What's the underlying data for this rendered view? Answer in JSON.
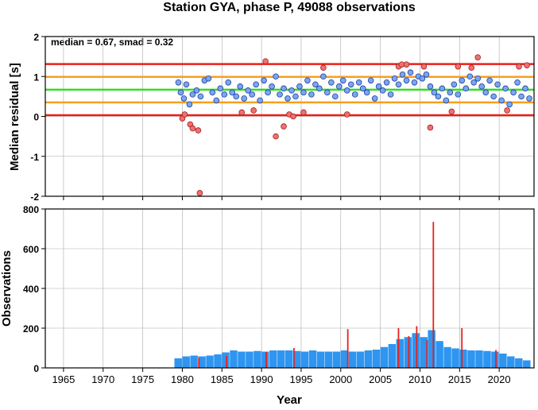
{
  "chart_data": [
    {
      "type": "scatter",
      "title": "Station GYA, phase P, 49088 observations",
      "ylabel": "Median residual [s]",
      "annotation": "median = 0.67, smad = 0.32",
      "xlim": [
        1962.7,
        2024.4
      ],
      "xticks": [
        1965,
        1970,
        1975,
        1980,
        1985,
        1990,
        1995,
        2000,
        2005,
        2010,
        2015,
        2020
      ],
      "ylim": [
        -2,
        2
      ],
      "yticks": [
        -2,
        -1,
        0,
        1,
        2
      ],
      "grid": true,
      "hlines": [
        {
          "value": 1.31,
          "color": "#e8201a"
        },
        {
          "value": 0.99,
          "color": "#f5a020"
        },
        {
          "value": 0.67,
          "color": "#33dd22"
        },
        {
          "value": 0.35,
          "color": "#f5a020"
        },
        {
          "value": 0.03,
          "color": "#e8201a"
        }
      ],
      "series": [
        {
          "color": "#7aa6f0",
          "x": [
            1979.5,
            1979.8,
            1980.2,
            1980.5,
            1980.9,
            1981.3,
            1981.8,
            1982.3,
            1982.8,
            1983.3,
            1983.8,
            1984.3,
            1984.8,
            1985.3,
            1985.8,
            1986.3,
            1986.8,
            1987.3,
            1987.8,
            1988.3,
            1988.8,
            1989.3,
            1989.8,
            1990.3,
            1990.8,
            1991.3,
            1991.8,
            1992.3,
            1992.8,
            1993.3,
            1993.8,
            1994.3,
            1994.8,
            1995.3,
            1995.8,
            1996.3,
            1996.8,
            1997.3,
            1997.8,
            1998.3,
            1998.8,
            1999.3,
            1999.8,
            2000.3,
            2000.8,
            2001.3,
            2001.8,
            2002.3,
            2002.8,
            2003.3,
            2003.8,
            2004.3,
            2004.8,
            2005.3,
            2005.8,
            2006.3,
            2006.8,
            2007.3,
            2007.8,
            2008.3,
            2008.8,
            2009.3,
            2009.8,
            2010.3,
            2010.8,
            2011.3,
            2011.8,
            2012.3,
            2012.8,
            2013.3,
            2013.8,
            2014.3,
            2014.8,
            2015.3,
            2015.8,
            2016.3,
            2016.8,
            2017.3,
            2017.8,
            2018.3,
            2018.8,
            2019.3,
            2019.8,
            2020.3,
            2020.8,
            2021.3,
            2021.8,
            2022.3,
            2022.8,
            2023.3,
            2023.8
          ],
          "values": [
            0.85,
            0.6,
            0.45,
            0.8,
            0.3,
            0.55,
            0.65,
            0.5,
            0.9,
            0.95,
            0.6,
            0.4,
            0.7,
            0.55,
            0.85,
            0.6,
            0.5,
            0.75,
            0.45,
            0.65,
            0.55,
            0.8,
            0.4,
            0.9,
            0.6,
            0.75,
            1.0,
            0.55,
            0.7,
            0.45,
            0.65,
            0.5,
            0.75,
            0.6,
            0.9,
            0.55,
            0.8,
            0.7,
            1.0,
            0.6,
            0.85,
            0.5,
            0.75,
            0.9,
            0.65,
            0.8,
            0.55,
            0.85,
            0.7,
            0.6,
            0.9,
            0.45,
            0.75,
            0.65,
            0.85,
            0.55,
            0.95,
            0.8,
            1.05,
            0.9,
            1.1,
            0.85,
            1.0,
            0.95,
            1.05,
            0.75,
            0.6,
            0.5,
            0.7,
            0.4,
            0.6,
            0.8,
            0.55,
            0.9,
            0.7,
            1.0,
            0.85,
            0.95,
            0.75,
            0.6,
            0.9,
            0.5,
            0.8,
            0.4,
            0.7,
            0.3,
            0.6,
            0.85,
            0.5,
            0.7,
            0.45
          ]
        },
        {
          "color": "#f07070",
          "x": [
            1980.0,
            1980.3,
            1981.0,
            1981.3,
            1982.0,
            1982.2,
            1987.5,
            1989.0,
            1990.5,
            1991.8,
            1992.8,
            1993.5,
            1994.0,
            1995.3,
            1997.8,
            2000.8,
            2007.3,
            2007.7,
            2008.3,
            2010.5,
            2011.3,
            2014.0,
            2014.8,
            2016.5,
            2017.3,
            2021.0,
            2022.5,
            2023.5
          ],
          "values": [
            -0.05,
            0.05,
            -0.2,
            -0.3,
            -0.35,
            -1.92,
            0.1,
            0.15,
            1.38,
            -0.5,
            -0.25,
            0.05,
            0.0,
            0.1,
            1.22,
            0.05,
            1.25,
            1.3,
            1.3,
            1.25,
            -0.28,
            0.12,
            1.25,
            1.22,
            1.48,
            0.15,
            1.25,
            1.28
          ]
        }
      ]
    },
    {
      "type": "bar",
      "ylabel": "Observations",
      "xlabel": "Year",
      "xlim": [
        1962.7,
        2024.4
      ],
      "xticks": [
        1965,
        1970,
        1975,
        1980,
        1985,
        1990,
        1995,
        2000,
        2005,
        2010,
        2015,
        2020
      ],
      "ylim": [
        0,
        800
      ],
      "yticks": [
        0,
        200,
        400,
        600,
        800
      ],
      "grid": true,
      "series": [
        {
          "color": "#2e95f0",
          "x": [
            1979,
            1980,
            1981,
            1982,
            1983,
            1984,
            1985,
            1986,
            1987,
            1988,
            1989,
            1990,
            1991,
            1992,
            1993,
            1994,
            1995,
            1996,
            1997,
            1998,
            1999,
            2000,
            2001,
            2002,
            2003,
            2004,
            2005,
            2006,
            2007,
            2008,
            2009,
            2010,
            2011,
            2012,
            2013,
            2014,
            2015,
            2016,
            2017,
            2018,
            2019,
            2020,
            2021,
            2022,
            2023
          ],
          "values": [
            48,
            58,
            62,
            58,
            62,
            68,
            78,
            88,
            82,
            82,
            85,
            82,
            88,
            88,
            88,
            85,
            82,
            88,
            82,
            82,
            82,
            88,
            82,
            82,
            88,
            92,
            105,
            120,
            145,
            155,
            175,
            155,
            190,
            135,
            105,
            98,
            92,
            88,
            88,
            85,
            82,
            72,
            58,
            48,
            38
          ]
        },
        {
          "color": "#e8201a",
          "x": [
            1982,
            1985.5,
            1990.5,
            1994,
            2000.8,
            2007.2,
            2008.5,
            2009.5,
            2010.8,
            2011.6,
            2015.2,
            2019.5
          ],
          "values": [
            50,
            60,
            80,
            100,
            195,
            200,
            160,
            210,
            140,
            735,
            200,
            90
          ]
        }
      ]
    }
  ]
}
